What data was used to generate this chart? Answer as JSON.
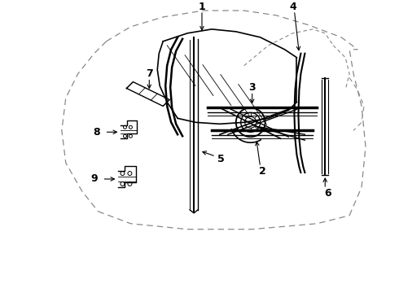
{
  "background_color": "#ffffff",
  "line_color": "#000000",
  "dashed_color": "#888888",
  "fig_width": 4.9,
  "fig_height": 3.6,
  "dpi": 100
}
